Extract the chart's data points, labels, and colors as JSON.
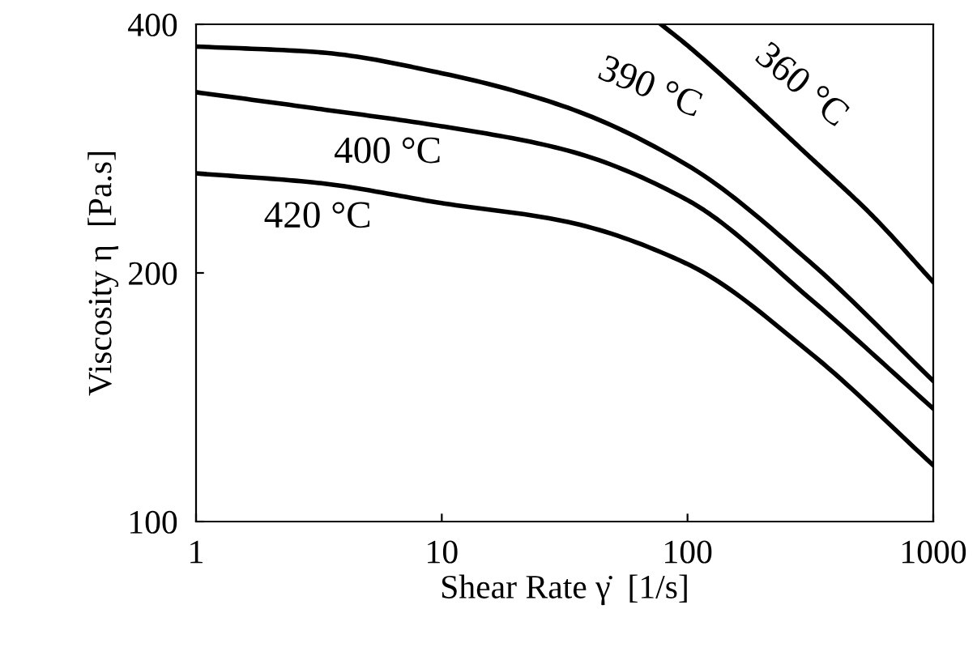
{
  "chart_data": {
    "type": "line",
    "xlabel": "Shear Rate γ̇  [1/s]",
    "ylabel": "Viscosity η  [Pa.s]",
    "log": "xy",
    "xlim": [
      1,
      1000
    ],
    "ylim": [
      100,
      400
    ],
    "xticks": [
      1,
      10,
      100,
      1000
    ],
    "yticks": [
      100,
      200,
      400
    ],
    "grid": false,
    "legend": false,
    "marker": "none",
    "line_style": "solid",
    "series": [
      {
        "name": "360 °C",
        "color": "#000000",
        "x": [
          78,
          100,
          316,
          562,
          1000
        ],
        "values": [
          400,
          377,
          276,
          235,
          195
        ]
      },
      {
        "name": "390 °C",
        "color": "#000000",
        "x": [
          1,
          3.16,
          10,
          31.6,
          100,
          316,
          1000
        ],
        "values": [
          376,
          370,
          349,
          318,
          270,
          206,
          148
        ]
      },
      {
        "name": "400 °C",
        "color": "#000000",
        "x": [
          1,
          3.16,
          10,
          31.6,
          100,
          316,
          1000
        ],
        "values": [
          331,
          316,
          301,
          282,
          245,
          186,
          137
        ]
      },
      {
        "name": "420 °C",
        "color": "#000000",
        "x": [
          1,
          3.16,
          10,
          31.6,
          100,
          316,
          1000
        ],
        "values": [
          264,
          257,
          243,
          231,
          205,
          160,
          117
        ]
      }
    ]
  }
}
